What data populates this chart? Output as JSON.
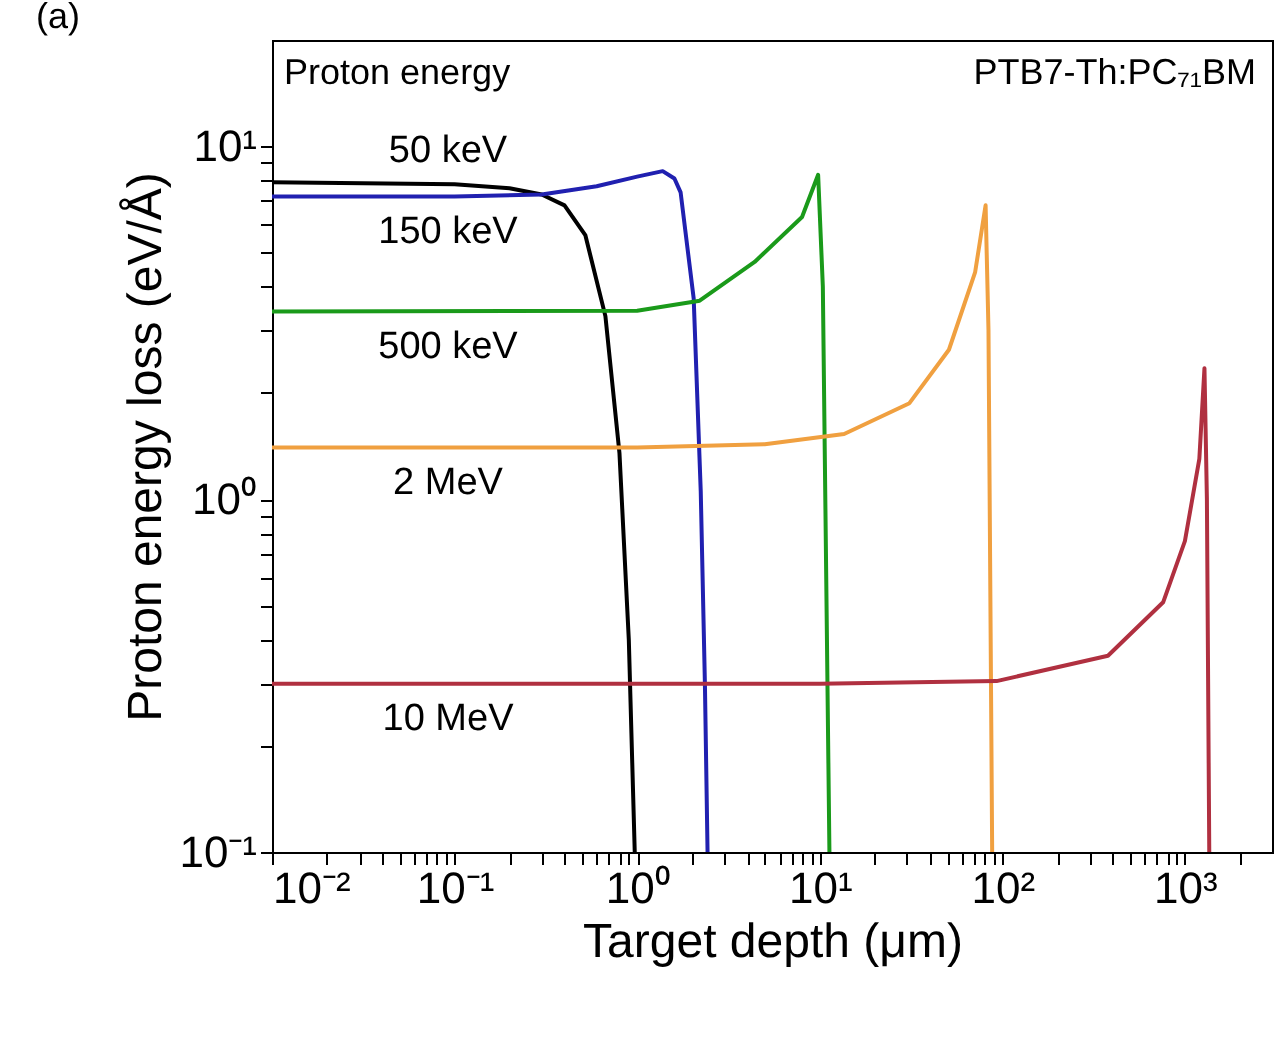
{
  "chart_data": {
    "type": "line",
    "xlabel": "Target depth (μm)",
    "ylabel": "Proton energy loss (eV/Å)",
    "legend_title": "Proton energy",
    "annotations": [
      "(a)",
      "PTB7-Th:PC₇₁BM"
    ],
    "log": "xy",
    "xlim": [
      0.01,
      3000
    ],
    "ylim": [
      0.1,
      20
    ],
    "xticks": [
      {
        "value": 0.01,
        "label": "10⁻²"
      },
      {
        "value": 0.02,
        "label": null
      },
      {
        "value": 0.03,
        "label": null
      },
      {
        "value": 0.04,
        "label": null
      },
      {
        "value": 0.05,
        "label": null
      },
      {
        "value": 0.06,
        "label": null
      },
      {
        "value": 0.07,
        "label": null
      },
      {
        "value": 0.08,
        "label": null
      },
      {
        "value": 0.09,
        "label": null
      },
      {
        "value": 0.1,
        "label": "10⁻¹"
      },
      {
        "value": 0.2,
        "label": null
      },
      {
        "value": 0.3,
        "label": null
      },
      {
        "value": 0.4,
        "label": null
      },
      {
        "value": 0.5,
        "label": null
      },
      {
        "value": 0.6,
        "label": null
      },
      {
        "value": 0.7,
        "label": null
      },
      {
        "value": 0.8,
        "label": null
      },
      {
        "value": 0.9,
        "label": null
      },
      {
        "value": 1,
        "label": "10⁰"
      },
      {
        "value": 2,
        "label": null
      },
      {
        "value": 3,
        "label": null
      },
      {
        "value": 4,
        "label": null
      },
      {
        "value": 5,
        "label": null
      },
      {
        "value": 6,
        "label": null
      },
      {
        "value": 7,
        "label": null
      },
      {
        "value": 8,
        "label": null
      },
      {
        "value": 9,
        "label": null
      },
      {
        "value": 10,
        "label": "10¹"
      },
      {
        "value": 20,
        "label": null
      },
      {
        "value": 30,
        "label": null
      },
      {
        "value": 40,
        "label": null
      },
      {
        "value": 50,
        "label": null
      },
      {
        "value": 60,
        "label": null
      },
      {
        "value": 70,
        "label": null
      },
      {
        "value": 80,
        "label": null
      },
      {
        "value": 90,
        "label": null
      },
      {
        "value": 100,
        "label": "10²"
      },
      {
        "value": 200,
        "label": null
      },
      {
        "value": 300,
        "label": null
      },
      {
        "value": 400,
        "label": null
      },
      {
        "value": 500,
        "label": null
      },
      {
        "value": 600,
        "label": null
      },
      {
        "value": 700,
        "label": null
      },
      {
        "value": 800,
        "label": null
      },
      {
        "value": 900,
        "label": null
      },
      {
        "value": 1000,
        "label": "10³"
      },
      {
        "value": 2000,
        "label": null
      }
    ],
    "yticks": [
      {
        "value": 0.1,
        "label": "10⁻¹"
      },
      {
        "value": 0.2,
        "label": null
      },
      {
        "value": 0.3,
        "label": null
      },
      {
        "value": 0.4,
        "label": null
      },
      {
        "value": 0.5,
        "label": null
      },
      {
        "value": 0.6,
        "label": null
      },
      {
        "value": 0.7,
        "label": null
      },
      {
        "value": 0.8,
        "label": null
      },
      {
        "value": 0.9,
        "label": null
      },
      {
        "value": 1,
        "label": "10⁰"
      },
      {
        "value": 2,
        "label": null
      },
      {
        "value": 3,
        "label": null
      },
      {
        "value": 4,
        "label": null
      },
      {
        "value": 5,
        "label": null
      },
      {
        "value": 6,
        "label": null
      },
      {
        "value": 7,
        "label": null
      },
      {
        "value": 8,
        "label": null
      },
      {
        "value": 9,
        "label": null
      },
      {
        "value": 10,
        "label": "10¹"
      }
    ],
    "series": [
      {
        "name": "50 keV",
        "color": "#000000",
        "x": [
          0.01,
          0.1,
          0.2,
          0.3,
          0.4,
          0.52,
          0.67,
          0.8,
          0.9,
          0.97
        ],
        "values": [
          7.9,
          7.8,
          7.6,
          7.3,
          6.8,
          5.6,
          3.3,
          1.35,
          0.4,
          0.1
        ]
      },
      {
        "name": "150 keV",
        "color": "#2020b0",
        "x": [
          0.01,
          0.1,
          0.3,
          0.6,
          1.0,
          1.38,
          1.6,
          1.73,
          2.04,
          2.23,
          2.35,
          2.43
        ],
        "values": [
          7.2,
          7.2,
          7.3,
          7.7,
          8.2,
          8.5,
          8.1,
          7.4,
          3.7,
          1.05,
          0.3,
          0.1
        ]
      },
      {
        "name": "500 keV",
        "color": "#1a9a1a",
        "x": [
          0.01,
          1,
          2.2,
          4.4,
          8,
          9.8,
          10.4,
          11.3
        ],
        "values": [
          3.4,
          3.42,
          3.65,
          4.7,
          6.3,
          8.3,
          4,
          0.1
        ]
      },
      {
        "name": "2 MeV",
        "color": "#f0a040",
        "x": [
          0.01,
          1,
          5,
          13.6,
          31,
          51,
          71,
          81,
          84,
          88
        ],
        "values": [
          1.4,
          1.4,
          1.43,
          1.53,
          1.87,
          2.65,
          4.4,
          6.8,
          3,
          0.1
        ]
      },
      {
        "name": "10 MeV",
        "color": "#b03040",
        "x": [
          0.01,
          10,
          93,
          379,
          760,
          1000,
          1200,
          1280,
          1320,
          1360
        ],
        "values": [
          0.3,
          0.3,
          0.305,
          0.36,
          0.51,
          0.76,
          1.3,
          2.35,
          1,
          0.1
        ]
      }
    ]
  }
}
